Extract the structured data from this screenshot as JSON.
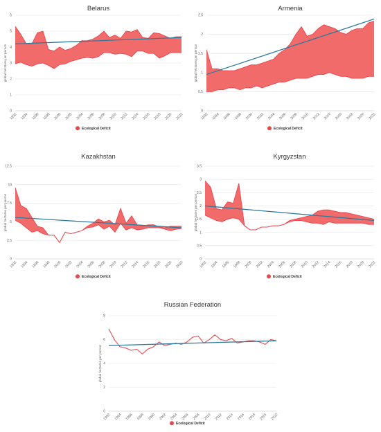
{
  "colors": {
    "deficit_fill": "#f26b6b",
    "deficit_line": "#e8474c",
    "trend": "#2b7a9e",
    "grid": "#e6e6e6",
    "legend_dot": "#e8474c"
  },
  "chart_data": [
    {
      "type": "area",
      "title": "Belarus",
      "ylabel": "global hectares per person",
      "ylim": [
        0,
        6
      ],
      "yticks": [
        "0",
        "1",
        "2",
        "3",
        "4",
        "5",
        "6"
      ],
      "xticks": [
        "1992",
        "1994",
        "1996",
        "1998",
        "2000",
        "2002",
        "2004",
        "2006",
        "2008",
        "2010",
        "2012",
        "2014",
        "2016",
        "2018",
        "2020",
        "2022"
      ],
      "legend": "Ecological Deficit",
      "x": [
        1992,
        1993,
        1994,
        1995,
        1996,
        1997,
        1998,
        1999,
        2000,
        2001,
        2002,
        2003,
        2004,
        2005,
        2006,
        2007,
        2008,
        2009,
        2010,
        2011,
        2012,
        2013,
        2014,
        2015,
        2016,
        2017,
        2018,
        2019,
        2020,
        2021,
        2022
      ],
      "upper": [
        5.3,
        4.8,
        4.2,
        4.2,
        4.9,
        5.0,
        3.85,
        3.75,
        4.0,
        3.8,
        3.9,
        4.1,
        4.4,
        4.4,
        4.5,
        4.7,
        5.0,
        4.6,
        4.75,
        4.55,
        5.0,
        4.95,
        5.1,
        4.6,
        4.55,
        4.9,
        4.85,
        4.7,
        4.55,
        4.65,
        4.65
      ],
      "lower": [
        2.95,
        3.05,
        2.9,
        2.8,
        2.95,
        3.0,
        2.85,
        2.65,
        2.9,
        2.95,
        3.1,
        3.2,
        3.3,
        3.35,
        3.3,
        3.4,
        3.65,
        3.65,
        3.55,
        3.6,
        3.55,
        3.4,
        3.75,
        3.75,
        3.6,
        3.6,
        3.3,
        3.45,
        3.65,
        3.65,
        3.65
      ],
      "trend": [
        4.2,
        4.6
      ]
    },
    {
      "type": "area",
      "title": "Armenia",
      "ylabel": "global hectares per person",
      "ylim": [
        0,
        2.5
      ],
      "yticks": [
        "0",
        "0.5",
        "1",
        "1.5",
        "2",
        "2.5"
      ],
      "xticks": [
        "1992",
        "1994",
        "1996",
        "1998",
        "2000",
        "2002",
        "2004",
        "2006",
        "2008",
        "2010",
        "2012",
        "2014",
        "2016",
        "2018",
        "2020",
        "2022"
      ],
      "legend": "Ecological Deficit",
      "x": [
        1992,
        1993,
        1994,
        1995,
        1996,
        1997,
        1998,
        1999,
        2000,
        2001,
        2002,
        2003,
        2004,
        2005,
        2006,
        2007,
        2008,
        2009,
        2010,
        2011,
        2012,
        2013,
        2014,
        2015,
        2016,
        2017,
        2018,
        2019,
        2020,
        2021,
        2022
      ],
      "upper": [
        1.6,
        1.1,
        1.1,
        1.05,
        1.05,
        1.05,
        1.1,
        1.15,
        1.2,
        1.2,
        1.25,
        1.3,
        1.35,
        1.5,
        1.6,
        1.75,
        2.0,
        2.2,
        1.95,
        2.0,
        2.15,
        2.25,
        2.2,
        2.15,
        2.05,
        2.0,
        2.1,
        2.15,
        2.15,
        2.3,
        2.35
      ],
      "lower": [
        0.5,
        0.5,
        0.55,
        0.55,
        0.6,
        0.6,
        0.55,
        0.6,
        0.6,
        0.65,
        0.6,
        0.65,
        0.7,
        0.75,
        0.75,
        0.8,
        0.85,
        0.85,
        0.85,
        0.9,
        0.95,
        0.95,
        1.0,
        0.95,
        0.9,
        0.9,
        0.85,
        0.85,
        0.85,
        0.9,
        0.9
      ],
      "trend": [
        0.95,
        2.4
      ]
    },
    {
      "type": "area",
      "title": "Kazakhstan",
      "ylabel": "global hectares per person",
      "ylim": [
        0,
        12.5
      ],
      "yticks": [
        "0",
        "2.5",
        "5",
        "7.5",
        "10",
        "12.5"
      ],
      "xticks": [
        "1992",
        "1994",
        "1996",
        "1998",
        "2000",
        "2002",
        "2004",
        "2006",
        "2008",
        "2010",
        "2012",
        "2014",
        "2016",
        "2018",
        "2020",
        "2022"
      ],
      "legend": "Ecological Deficit",
      "x": [
        1992,
        1993,
        1994,
        1995,
        1996,
        1997,
        1998,
        1999,
        2000,
        2001,
        2002,
        2003,
        2004,
        2005,
        2006,
        2007,
        2008,
        2009,
        2010,
        2011,
        2012,
        2013,
        2014,
        2015,
        2016,
        2017,
        2018,
        2019,
        2020,
        2021,
        2022
      ],
      "upper": [
        9.6,
        7.2,
        6.8,
        5.6,
        4.4,
        4.2,
        3.2,
        3.2,
        2.2,
        3.6,
        3.4,
        3.6,
        3.8,
        4.4,
        4.8,
        5.4,
        5.0,
        5.2,
        4.6,
        6.8,
        4.8,
        5.8,
        4.6,
        4.4,
        4.6,
        4.6,
        4.3,
        4.2,
        4.4,
        4.4,
        4.4
      ],
      "lower": [
        5.2,
        4.8,
        4.2,
        3.6,
        3.8,
        3.4,
        3.2,
        3.2,
        2.2,
        3.6,
        3.4,
        3.6,
        3.8,
        4.2,
        4.3,
        4.6,
        4.0,
        4.4,
        3.6,
        4.8,
        3.9,
        4.2,
        3.9,
        4.0,
        4.2,
        4.2,
        4.2,
        4.0,
        3.8,
        4.0,
        4.1
      ],
      "trend": [
        5.6,
        4.2
      ]
    },
    {
      "type": "area",
      "title": "Kyrgyzstan",
      "ylabel": "global hectares per person",
      "ylim": [
        0,
        3.5
      ],
      "yticks": [
        "0",
        "0.5",
        "1",
        "1.5",
        "2",
        "2.5",
        "3",
        "3.5"
      ],
      "xticks": [
        "1992",
        "1994",
        "1996",
        "1998",
        "2000",
        "2002",
        "2004",
        "2006",
        "2008",
        "2010",
        "2012",
        "2014",
        "2016",
        "2018",
        "2020",
        "2022"
      ],
      "legend": "Ecological Deficit",
      "x": [
        1992,
        1993,
        1994,
        1995,
        1996,
        1997,
        1998,
        1999,
        2000,
        2001,
        2002,
        2003,
        2004,
        2005,
        2006,
        2007,
        2008,
        2009,
        2010,
        2011,
        2012,
        2013,
        2014,
        2015,
        2016,
        2017,
        2018,
        2019,
        2020,
        2021,
        2022
      ],
      "upper": [
        2.95,
        2.7,
        1.9,
        1.85,
        2.15,
        2.1,
        2.85,
        1.25,
        1.1,
        1.1,
        1.2,
        1.2,
        1.25,
        1.25,
        1.3,
        1.45,
        1.5,
        1.55,
        1.6,
        1.65,
        1.8,
        1.85,
        1.85,
        1.8,
        1.75,
        1.75,
        1.7,
        1.65,
        1.6,
        1.55,
        1.5
      ],
      "lower": [
        1.65,
        1.55,
        1.45,
        1.4,
        1.5,
        1.55,
        1.5,
        1.25,
        1.1,
        1.1,
        1.2,
        1.2,
        1.25,
        1.25,
        1.3,
        1.4,
        1.45,
        1.45,
        1.4,
        1.35,
        1.35,
        1.3,
        1.4,
        1.35,
        1.35,
        1.35,
        1.35,
        1.35,
        1.35,
        1.3,
        1.3
      ],
      "trend": [
        2.0,
        1.45
      ]
    },
    {
      "type": "area",
      "title": "Russian Federation",
      "ylabel": "global hectares per person",
      "ylim": [
        0,
        8
      ],
      "yticks": [
        "0",
        "2",
        "4",
        "6",
        "8"
      ],
      "xticks": [
        "1992",
        "1994",
        "1996",
        "1998",
        "2000",
        "2002",
        "2004",
        "2006",
        "2008",
        "2010",
        "2012",
        "2014",
        "2016",
        "2018",
        "2020",
        "2022"
      ],
      "legend": "Ecological Deficit",
      "x": [
        1992,
        1993,
        1994,
        1995,
        1996,
        1997,
        1998,
        1999,
        2000,
        2001,
        2002,
        2003,
        2004,
        2005,
        2006,
        2007,
        2008,
        2009,
        2010,
        2011,
        2012,
        2013,
        2014,
        2015,
        2016,
        2017,
        2018,
        2019,
        2020,
        2021,
        2022
      ],
      "upper": [
        6.9,
        6.0,
        5.4,
        5.3,
        5.1,
        5.2,
        4.8,
        5.2,
        5.4,
        5.8,
        5.5,
        5.6,
        5.7,
        5.6,
        5.8,
        6.2,
        6.3,
        5.7,
        6.0,
        6.4,
        6.0,
        5.9,
        6.1,
        5.7,
        5.8,
        5.9,
        5.9,
        5.8,
        5.6,
        6.0,
        5.9
      ],
      "lower": [
        6.9,
        6.0,
        5.4,
        5.3,
        5.1,
        5.2,
        4.8,
        5.2,
        5.4,
        5.8,
        5.5,
        5.6,
        5.7,
        5.6,
        5.8,
        6.2,
        6.3,
        5.7,
        6.0,
        6.4,
        6.0,
        5.9,
        6.1,
        5.7,
        5.8,
        5.9,
        5.9,
        5.8,
        5.6,
        6.0,
        5.9
      ],
      "trend": [
        5.5,
        5.9
      ]
    }
  ]
}
